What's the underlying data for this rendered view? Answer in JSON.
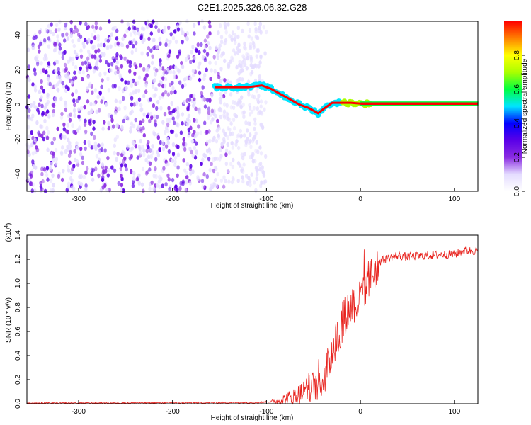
{
  "title": "C2E1.2025.326.06.32.G28",
  "colors": {
    "series": "#e8231e",
    "axis": "#000000",
    "cmap": [
      "#ffffff",
      "#e4dcff",
      "#8a2be2",
      "#5a00e8",
      "#0000ff",
      "#00e5ff",
      "#00ff40",
      "#aaff00",
      "#ffff00",
      "#ff8000",
      "#ff0000"
    ]
  },
  "chart_data": [
    {
      "type": "heatmap",
      "xlabel": "Height of straight line (km)",
      "ylabel": "Frequency (Hz)",
      "xlim": [
        -355,
        125
      ],
      "ylim": [
        -50,
        48
      ],
      "xticks": [
        -300,
        -200,
        -100,
        0,
        100
      ],
      "yticks": [
        -40,
        -20,
        0,
        20,
        40
      ],
      "colorbar": {
        "label": "Normalized spectral amplitude",
        "range": [
          0.0,
          1.0
        ],
        "ticks": [
          "0.0",
          "0.2",
          "0.4",
          "0.6",
          "0.8"
        ]
      },
      "ridge": {
        "x": [
          -155,
          -140,
          -120,
          -105,
          -95,
          -85,
          -75,
          -65,
          -55,
          -45,
          -38,
          -30,
          -20,
          -10,
          0,
          10,
          125
        ],
        "y": [
          10,
          10,
          10,
          11,
          9,
          6,
          3,
          0,
          -2,
          -5,
          -2,
          1,
          1,
          1,
          0.5,
          0.5,
          0.5
        ]
      }
    },
    {
      "type": "line",
      "xlabel": "Height of straight line (km)",
      "ylabel": "SNR (10 * v/v)",
      "yscale_label": "(x10",
      "yscale_exp": "4",
      "yscale_close": ")",
      "xlim": [
        -355,
        125
      ],
      "ylim": [
        0,
        1.4
      ],
      "xticks": [
        -300,
        -200,
        -100,
        0,
        100
      ],
      "yticks": [
        "0.0",
        "0.2",
        "0.4",
        "0.6",
        "0.8",
        "1.0",
        "1.2",
        "1.4"
      ],
      "envelope": {
        "x": [
          -355,
          -200,
          -110,
          -100,
          -90,
          -80,
          -70,
          -60,
          -50,
          -40,
          -35,
          -30,
          -25,
          -20,
          -15,
          -10,
          -5,
          0,
          5,
          10,
          15,
          20,
          30,
          40,
          50,
          70,
          90,
          100,
          110,
          125
        ],
        "y": [
          0.005,
          0.008,
          0.01,
          0.015,
          0.02,
          0.04,
          0.06,
          0.1,
          0.15,
          0.2,
          0.3,
          0.45,
          0.55,
          0.65,
          0.75,
          0.82,
          0.85,
          0.85,
          0.95,
          1.05,
          1.12,
          1.18,
          1.21,
          1.23,
          1.22,
          1.23,
          1.24,
          1.24,
          1.27,
          1.27
        ]
      }
    }
  ]
}
